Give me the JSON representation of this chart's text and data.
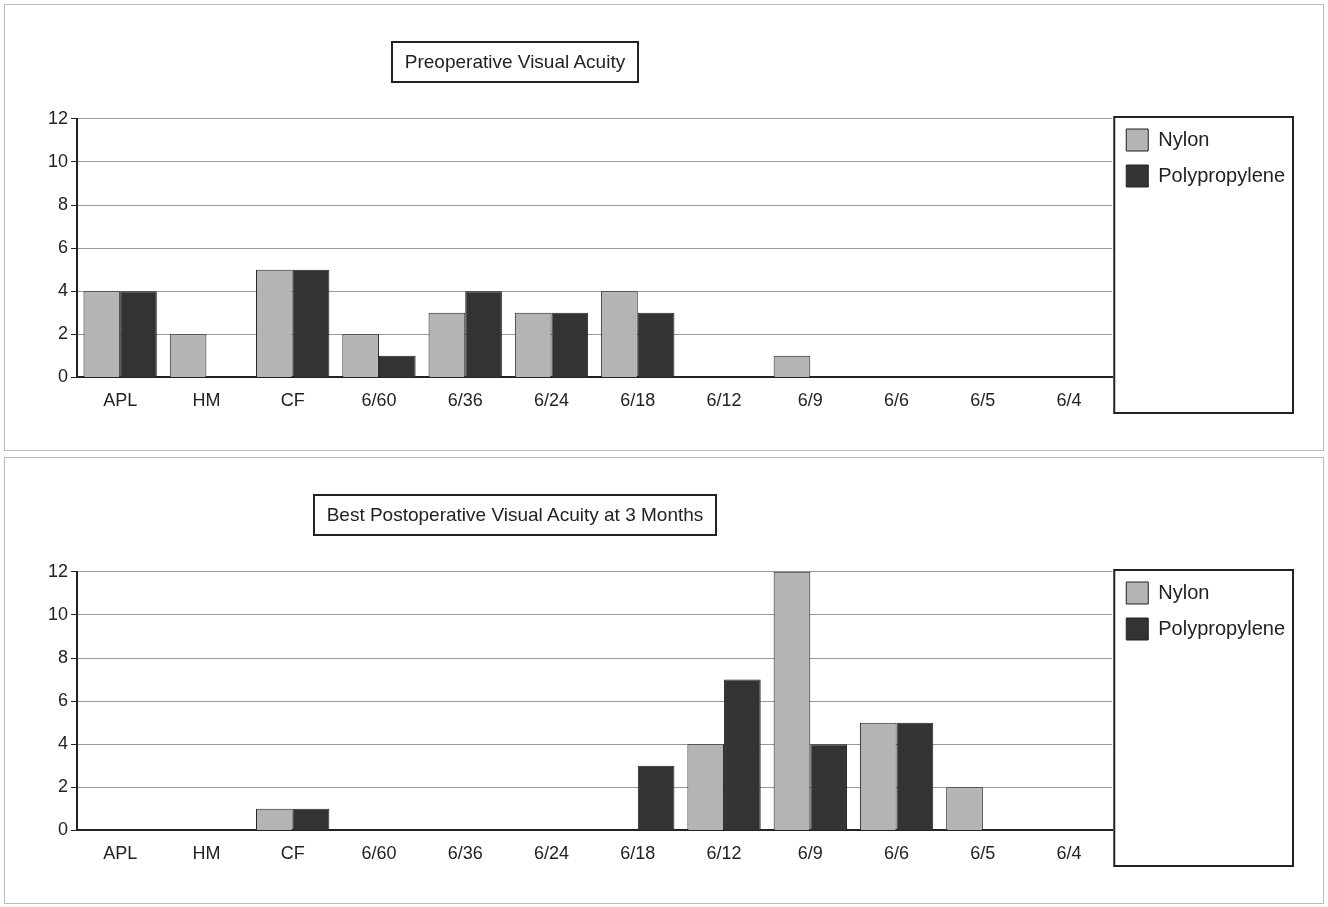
{
  "chart_data": [
    {
      "type": "bar",
      "title": "Preoperative Visual Acuity",
      "categories": [
        "APL",
        "HM",
        "CF",
        "6/60",
        "6/36",
        "6/24",
        "6/18",
        "6/12",
        "6/9",
        "6/6",
        "6/5",
        "6/4"
      ],
      "series": [
        {
          "name": "Nylon",
          "color": "#b4b4b4",
          "values": [
            4,
            2,
            5,
            2,
            3,
            3,
            4,
            0,
            1,
            0,
            0,
            0
          ]
        },
        {
          "name": "Polypropylene",
          "color": "#333333",
          "values": [
            4,
            0,
            5,
            1,
            4,
            3,
            3,
            0,
            0,
            0,
            0,
            0
          ]
        }
      ],
      "ylim": [
        0,
        12
      ],
      "yticks": [
        0,
        2,
        4,
        6,
        8,
        10,
        12
      ],
      "grid": "y",
      "legend": "right"
    },
    {
      "type": "bar",
      "title": "Best Postoperative Visual Acuity at 3 Months",
      "categories": [
        "APL",
        "HM",
        "CF",
        "6/60",
        "6/36",
        "6/24",
        "6/18",
        "6/12",
        "6/9",
        "6/6",
        "6/5",
        "6/4"
      ],
      "series": [
        {
          "name": "Nylon",
          "color": "#b4b4b4",
          "values": [
            0,
            0,
            1,
            0,
            0,
            0,
            0,
            4,
            12,
            5,
            2,
            0
          ]
        },
        {
          "name": "Polypropylene",
          "color": "#333333",
          "values": [
            0,
            0,
            1,
            0,
            0,
            0,
            3,
            7,
            4,
            5,
            0,
            0
          ]
        }
      ],
      "ylim": [
        0,
        12
      ],
      "yticks": [
        0,
        2,
        4,
        6,
        8,
        10,
        12
      ],
      "grid": "y",
      "legend": "right"
    }
  ]
}
